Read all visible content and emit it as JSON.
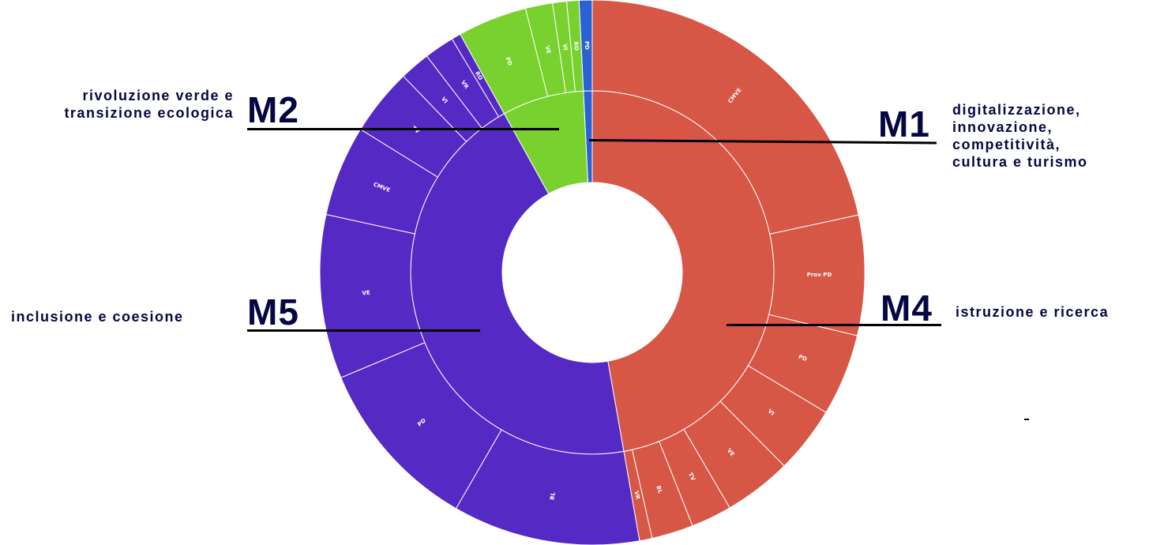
{
  "chart_data": {
    "type": "sunburst",
    "title": "",
    "center": [
      750,
      345
    ],
    "radii": {
      "hole": 114,
      "inner": 230,
      "outer": 345
    },
    "series": [
      {
        "code": "M1",
        "name": "digitalizzazione, innovazione, competitività, cultura e turismo",
        "color": "#2a62d4",
        "start_deg": 357.2,
        "end_deg": 360,
        "children": [
          {
            "label": "PD",
            "start_deg": 357.2,
            "end_deg": 360
          }
        ]
      },
      {
        "code": "M4",
        "name": "istruzione e ricerca",
        "color": "#d65745",
        "start_deg": 0,
        "end_deg": 170,
        "children": [
          {
            "label": "CMVE",
            "start_deg": 0,
            "end_deg": 77.8
          },
          {
            "label": "Prov PD",
            "start_deg": 77.8,
            "end_deg": 103.4
          },
          {
            "label": "PD",
            "start_deg": 103.4,
            "end_deg": 120.9
          },
          {
            "label": "VI",
            "start_deg": 120.9,
            "end_deg": 135.2
          },
          {
            "label": "VE",
            "start_deg": 135.2,
            "end_deg": 149.7
          },
          {
            "label": "TV",
            "start_deg": 149.7,
            "end_deg": 158.4
          },
          {
            "label": "BL",
            "start_deg": 158.4,
            "end_deg": 167.3
          },
          {
            "label": "VR",
            "start_deg": 167.3,
            "end_deg": 170
          }
        ]
      },
      {
        "code": "M5",
        "name": "inclusione e coesione",
        "color": "#5429c4",
        "start_deg": 170,
        "end_deg": 331,
        "children": [
          {
            "label": "BL",
            "start_deg": 170,
            "end_deg": 210
          },
          {
            "label": "PD",
            "start_deg": 210,
            "end_deg": 247.3
          },
          {
            "label": "VE",
            "start_deg": 247.3,
            "end_deg": 282.3
          },
          {
            "label": "CMVE",
            "start_deg": 282.3,
            "end_deg": 301.7
          },
          {
            "label": "TV",
            "start_deg": 301.7,
            "end_deg": 316.1
          },
          {
            "label": "VI",
            "start_deg": 316.1,
            "end_deg": 322.6
          },
          {
            "label": "VR",
            "start_deg": 322.6,
            "end_deg": 329
          },
          {
            "label": "RO",
            "start_deg": 329,
            "end_deg": 331
          }
        ]
      },
      {
        "code": "M2",
        "name": "rivoluzione verde e transizione ecologica",
        "color": "#79d12f",
        "start_deg": 331,
        "end_deg": 357.2,
        "children": [
          {
            "label": "PD",
            "start_deg": 331,
            "end_deg": 345.8
          },
          {
            "label": "VE",
            "start_deg": 345.8,
            "end_deg": 351.6
          },
          {
            "label": "VI",
            "start_deg": 351.6,
            "end_deg": 354.6
          },
          {
            "label": "RO",
            "start_deg": 354.6,
            "end_deg": 357.2
          }
        ]
      }
    ],
    "legend": "callouts"
  },
  "callouts": {
    "m2": {
      "code": "M2",
      "line1": "rivoluzione verde e",
      "line2": "transizione ecologica"
    },
    "m1": {
      "code": "M1",
      "line1": "digitalizzazione,",
      "line2": "innovazione,",
      "line3": "competitività,",
      "line4": "cultura e turismo"
    },
    "m5": {
      "code": "M5",
      "line1": "inclusione e coesione"
    },
    "m4": {
      "code": "M4",
      "line1": "istruzione e ricerca"
    },
    "dash": "-"
  }
}
